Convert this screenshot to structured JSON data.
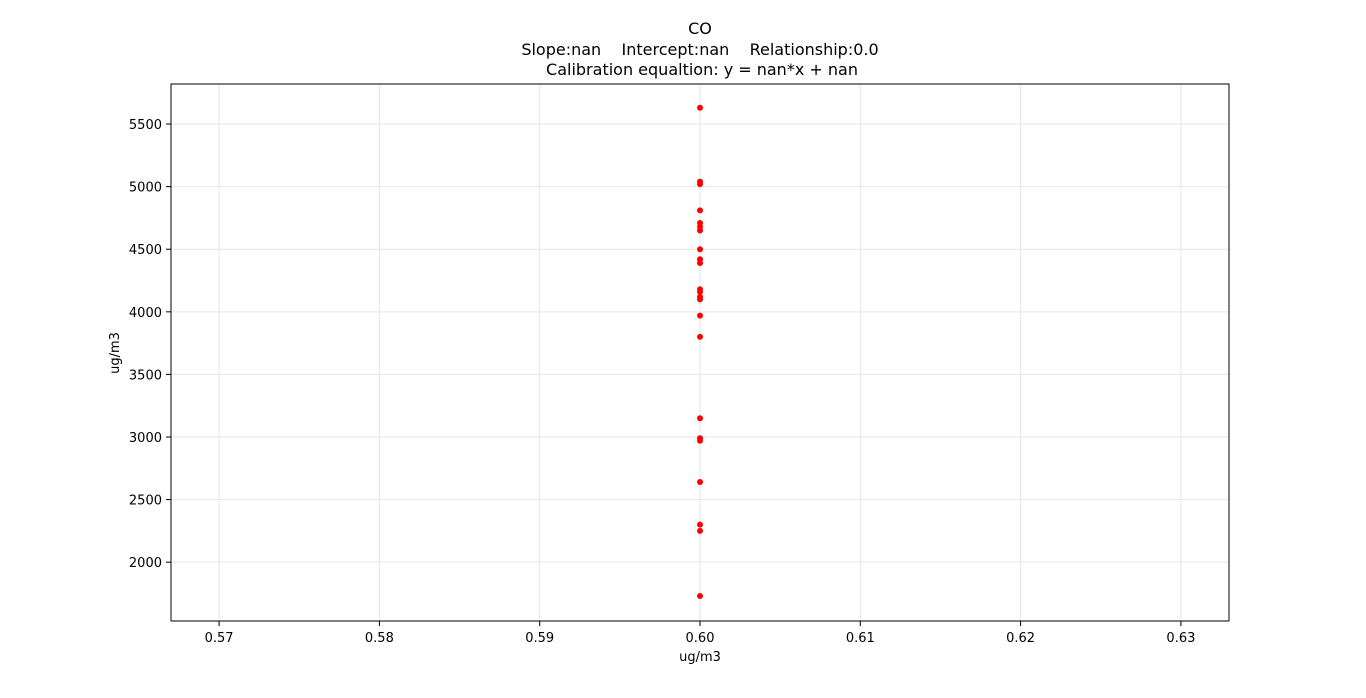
{
  "chart_data": {
    "type": "scatter",
    "title": "CO",
    "subtitle_line1": "Slope:nan    Intercept:nan    Relationship:0.0",
    "subtitle_line2": "Calibration equaltion: y = nan*x + nan",
    "xlabel": "ug/m3",
    "ylabel": "ug/m3",
    "xlim": [
      0.567,
      0.633
    ],
    "ylim": [
      1530,
      5820
    ],
    "x_ticks": [
      0.57,
      0.58,
      0.59,
      0.6,
      0.61,
      0.62,
      0.63
    ],
    "x_tick_labels": [
      "0.57",
      "0.58",
      "0.59",
      "0.60",
      "0.61",
      "0.62",
      "0.63"
    ],
    "y_ticks": [
      2000,
      2500,
      3000,
      3500,
      4000,
      4500,
      5000,
      5500
    ],
    "y_tick_labels": [
      "2000",
      "2500",
      "3000",
      "3500",
      "4000",
      "4500",
      "5000",
      "5500"
    ],
    "grid": true,
    "marker_color": "#ff0000",
    "points": [
      {
        "x": 0.6,
        "y": 5630
      },
      {
        "x": 0.6,
        "y": 5040
      },
      {
        "x": 0.6,
        "y": 5020
      },
      {
        "x": 0.6,
        "y": 4810
      },
      {
        "x": 0.6,
        "y": 4710
      },
      {
        "x": 0.6,
        "y": 4680
      },
      {
        "x": 0.6,
        "y": 4650
      },
      {
        "x": 0.6,
        "y": 4500
      },
      {
        "x": 0.6,
        "y": 4420
      },
      {
        "x": 0.6,
        "y": 4390
      },
      {
        "x": 0.6,
        "y": 4180
      },
      {
        "x": 0.6,
        "y": 4160
      },
      {
        "x": 0.6,
        "y": 4120
      },
      {
        "x": 0.6,
        "y": 4100
      },
      {
        "x": 0.6,
        "y": 3970
      },
      {
        "x": 0.6,
        "y": 3800
      },
      {
        "x": 0.6,
        "y": 3150
      },
      {
        "x": 0.6,
        "y": 2990
      },
      {
        "x": 0.6,
        "y": 2970
      },
      {
        "x": 0.6,
        "y": 2640
      },
      {
        "x": 0.6,
        "y": 2300
      },
      {
        "x": 0.6,
        "y": 2250
      },
      {
        "x": 0.6,
        "y": 1730
      }
    ]
  }
}
